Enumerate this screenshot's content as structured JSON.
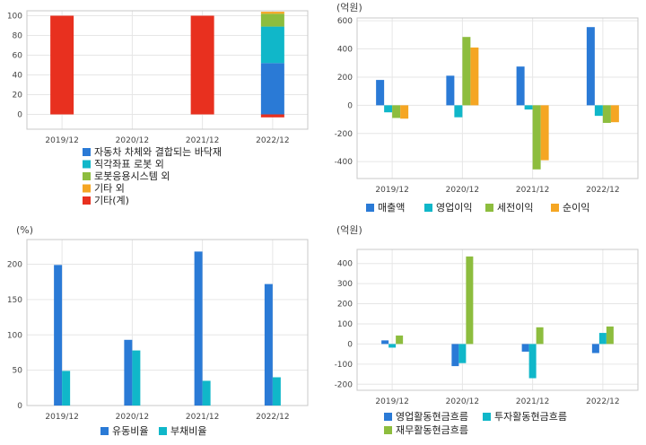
{
  "colors": {
    "blue": "#2a7ad6",
    "cyan": "#10b7c9",
    "green": "#8dbd3e",
    "orange": "#f5a623",
    "red": "#e8301f"
  },
  "chart_data": [
    {
      "id": "composition",
      "type": "bar",
      "stacked": true,
      "categories": [
        "2019/12",
        "2020/12",
        "2021/12",
        "2022/12"
      ],
      "ylim": [
        -15,
        105
      ],
      "yticks": [
        0,
        20,
        40,
        60,
        80,
        100
      ],
      "unit_label": "",
      "grid": true,
      "legend_position": "bottom",
      "series": [
        {
          "name": "자동차 차체와 결합되는 바닥재",
          "color_key": "blue",
          "values": [
            null,
            null,
            null,
            52
          ]
        },
        {
          "name": "직각좌표 로봇 외",
          "color_key": "cyan",
          "values": [
            null,
            null,
            null,
            37
          ]
        },
        {
          "name": "로봇응용시스템 외",
          "color_key": "green",
          "values": [
            null,
            null,
            null,
            13
          ]
        },
        {
          "name": "기타 외",
          "color_key": "orange",
          "values": [
            null,
            null,
            null,
            2
          ]
        },
        {
          "name": "기타(계)",
          "color_key": "red",
          "values": [
            100,
            null,
            100,
            -3
          ]
        }
      ]
    },
    {
      "id": "income",
      "type": "bar",
      "categories": [
        "2019/12",
        "2020/12",
        "2021/12",
        "2022/12"
      ],
      "ylim": [
        -520,
        620
      ],
      "yticks": [
        -400,
        -200,
        0,
        200,
        400,
        600
      ],
      "unit_label": "(억원)",
      "grid": true,
      "legend_position": "bottom",
      "series": [
        {
          "name": "매출액",
          "color_key": "blue",
          "values": [
            180,
            210,
            275,
            555
          ]
        },
        {
          "name": "영업이익",
          "color_key": "cyan",
          "values": [
            -50,
            -85,
            -30,
            -75
          ]
        },
        {
          "name": "세전이익",
          "color_key": "green",
          "values": [
            -90,
            485,
            -455,
            -125
          ]
        },
        {
          "name": "순이익",
          "color_key": "orange",
          "values": [
            -95,
            410,
            -390,
            -120
          ]
        }
      ]
    },
    {
      "id": "ratios",
      "type": "bar",
      "categories": [
        "2019/12",
        "2020/12",
        "2021/12",
        "2022/12"
      ],
      "ylim": [
        0,
        235
      ],
      "yticks": [
        0,
        50,
        100,
        150,
        200
      ],
      "unit_label": "(%)",
      "grid": true,
      "legend_position": "bottom",
      "series": [
        {
          "name": "유동비율",
          "color_key": "blue",
          "values": [
            199,
            93,
            218,
            172
          ]
        },
        {
          "name": "부채비율",
          "color_key": "cyan",
          "values": [
            49,
            78,
            35,
            40
          ]
        }
      ]
    },
    {
      "id": "cashflow",
      "type": "bar",
      "categories": [
        "2019/12",
        "2020/12",
        "2021/12",
        "2022/12"
      ],
      "ylim": [
        -230,
        470
      ],
      "yticks": [
        -200,
        -100,
        0,
        100,
        200,
        300,
        400
      ],
      "unit_label": "(억원)",
      "grid": true,
      "legend_position": "bottom",
      "series": [
        {
          "name": "영업활동현금흐름",
          "color_key": "blue",
          "values": [
            18,
            -110,
            -38,
            -45
          ]
        },
        {
          "name": "투자활동현금흐름",
          "color_key": "cyan",
          "values": [
            -18,
            -95,
            -170,
            55
          ]
        },
        {
          "name": "재무활동현금흐름",
          "color_key": "green",
          "values": [
            42,
            435,
            83,
            87
          ]
        }
      ]
    }
  ]
}
